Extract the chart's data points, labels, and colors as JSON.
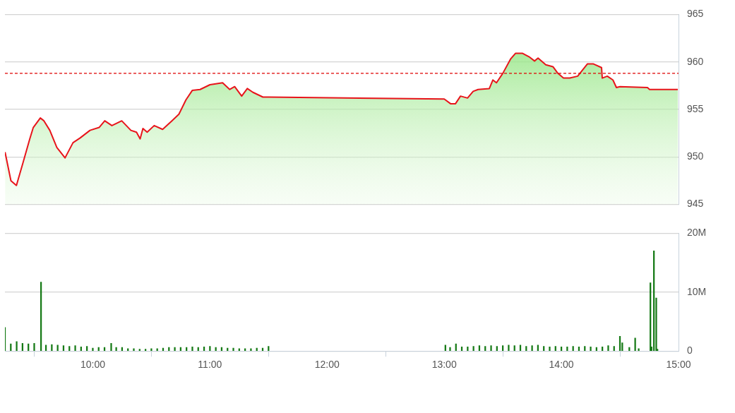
{
  "chart_data": [
    {
      "type": "area",
      "xlim": [
        9.25,
        15
      ],
      "ylim": [
        945,
        965
      ],
      "yticks": [
        945,
        950,
        955,
        960,
        965
      ],
      "grid": "y",
      "tick_labels": "y",
      "ref_lines": [
        {
          "axis": "y",
          "value": 958.8,
          "color": "#e00000",
          "line_style": "dashed"
        }
      ],
      "series": [
        {
          "color": "#e8141b",
          "x": [
            9.251,
            9.301,
            9.348,
            9.402,
            9.462,
            9.492,
            9.552,
            9.583,
            9.633,
            9.693,
            9.763,
            9.831,
            9.892,
            9.976,
            10.054,
            10.102,
            10.163,
            10.247,
            10.325,
            10.373,
            10.404,
            10.428,
            10.464,
            10.524,
            10.596,
            10.675,
            10.735,
            10.795,
            10.849,
            10.916,
            11.0,
            11.108,
            11.169,
            11.211,
            11.271,
            11.319,
            11.367,
            11.452,
            11.5,
            13.0,
            13.054,
            13.096,
            13.139,
            13.199,
            13.247,
            13.289,
            13.385,
            13.415,
            13.446,
            13.5,
            13.566,
            13.608,
            13.669,
            13.729,
            13.771,
            13.801,
            13.867,
            13.928,
            13.97,
            14.018,
            14.072,
            14.139,
            14.223,
            14.271,
            14.343,
            14.349,
            14.392,
            14.44,
            14.47,
            14.5,
            14.735,
            14.753,
            14.994
          ],
          "values": [
            950.5,
            947.5,
            947.0,
            949.3,
            951.9,
            953.1,
            954.1,
            953.8,
            952.8,
            951.0,
            949.9,
            951.5,
            952.0,
            952.8,
            953.1,
            953.8,
            953.3,
            953.8,
            952.8,
            952.6,
            951.9,
            953.0,
            952.6,
            953.3,
            952.9,
            953.8,
            954.5,
            956.0,
            957.0,
            957.1,
            957.6,
            957.8,
            957.1,
            957.4,
            956.4,
            957.2,
            956.8,
            956.3,
            956.3,
            956.1,
            955.6,
            955.6,
            956.4,
            956.2,
            956.9,
            957.1,
            957.2,
            958.1,
            957.8,
            958.8,
            960.3,
            960.9,
            960.9,
            960.5,
            960.1,
            960.4,
            959.7,
            959.5,
            958.8,
            958.3,
            958.3,
            958.5,
            959.8,
            959.8,
            959.4,
            958.3,
            958.5,
            958.1,
            957.3,
            957.4,
            957.3,
            957.1,
            957.1
          ]
        }
      ]
    },
    {
      "type": "bar",
      "xlim": [
        9.25,
        15
      ],
      "xticks": [
        {
          "value": 10,
          "label": "10:00"
        },
        {
          "value": 11,
          "label": "11:00"
        },
        {
          "value": 12,
          "label": "12:00"
        },
        {
          "value": 13,
          "label": "13:00"
        },
        {
          "value": 14,
          "label": "14:00"
        },
        {
          "value": 15,
          "label": "15:00"
        }
      ],
      "ylim": [
        0,
        20
      ],
      "yticks": [
        {
          "value": 0,
          "label": "0"
        },
        {
          "value": 10,
          "label": "10M"
        },
        {
          "value": 20,
          "label": "20M"
        }
      ],
      "grid": "y",
      "series": [
        {
          "color": "#167a16",
          "x": [
            9.25,
            9.3,
            9.35,
            9.4,
            9.45,
            9.5,
            9.558,
            9.6,
            9.65,
            9.7,
            9.75,
            9.8,
            9.85,
            9.9,
            9.95,
            10.0,
            10.05,
            10.1,
            10.157,
            10.2,
            10.25,
            10.3,
            10.35,
            10.4,
            10.45,
            10.5,
            10.55,
            10.6,
            10.65,
            10.7,
            10.75,
            10.8,
            10.85,
            10.9,
            10.95,
            11.0,
            11.05,
            11.1,
            11.15,
            11.2,
            11.25,
            11.3,
            11.35,
            11.4,
            11.45,
            11.5,
            13.01,
            13.05,
            13.1,
            13.15,
            13.2,
            13.25,
            13.3,
            13.35,
            13.4,
            13.45,
            13.5,
            13.55,
            13.6,
            13.65,
            13.7,
            13.75,
            13.8,
            13.85,
            13.9,
            13.95,
            14.0,
            14.05,
            14.1,
            14.15,
            14.2,
            14.25,
            14.3,
            14.35,
            14.4,
            14.45,
            14.5,
            14.52,
            14.58,
            14.63,
            14.66,
            14.76,
            14.77,
            14.79,
            14.81,
            14.82
          ],
          "values": [
            4.0,
            1.2,
            1.6,
            1.3,
            1.2,
            1.3,
            11.7,
            1.0,
            1.1,
            1.0,
            0.9,
            0.8,
            0.9,
            0.7,
            0.8,
            0.5,
            0.6,
            0.6,
            1.3,
            0.6,
            0.6,
            0.4,
            0.4,
            0.3,
            0.3,
            0.4,
            0.4,
            0.5,
            0.6,
            0.6,
            0.6,
            0.6,
            0.7,
            0.6,
            0.7,
            0.8,
            0.6,
            0.6,
            0.5,
            0.5,
            0.4,
            0.4,
            0.4,
            0.5,
            0.5,
            0.8,
            1.0,
            0.6,
            1.2,
            0.7,
            0.7,
            0.8,
            0.9,
            0.8,
            0.9,
            0.8,
            0.9,
            1.0,
            0.9,
            1.0,
            0.8,
            0.9,
            1.0,
            0.8,
            0.7,
            0.8,
            0.7,
            0.7,
            0.8,
            0.7,
            0.8,
            0.7,
            0.6,
            0.7,
            0.9,
            0.8,
            2.5,
            1.4,
            0.6,
            2.2,
            0.4,
            11.6,
            0.7,
            17.0,
            9.0,
            0.3
          ]
        }
      ]
    }
  ]
}
